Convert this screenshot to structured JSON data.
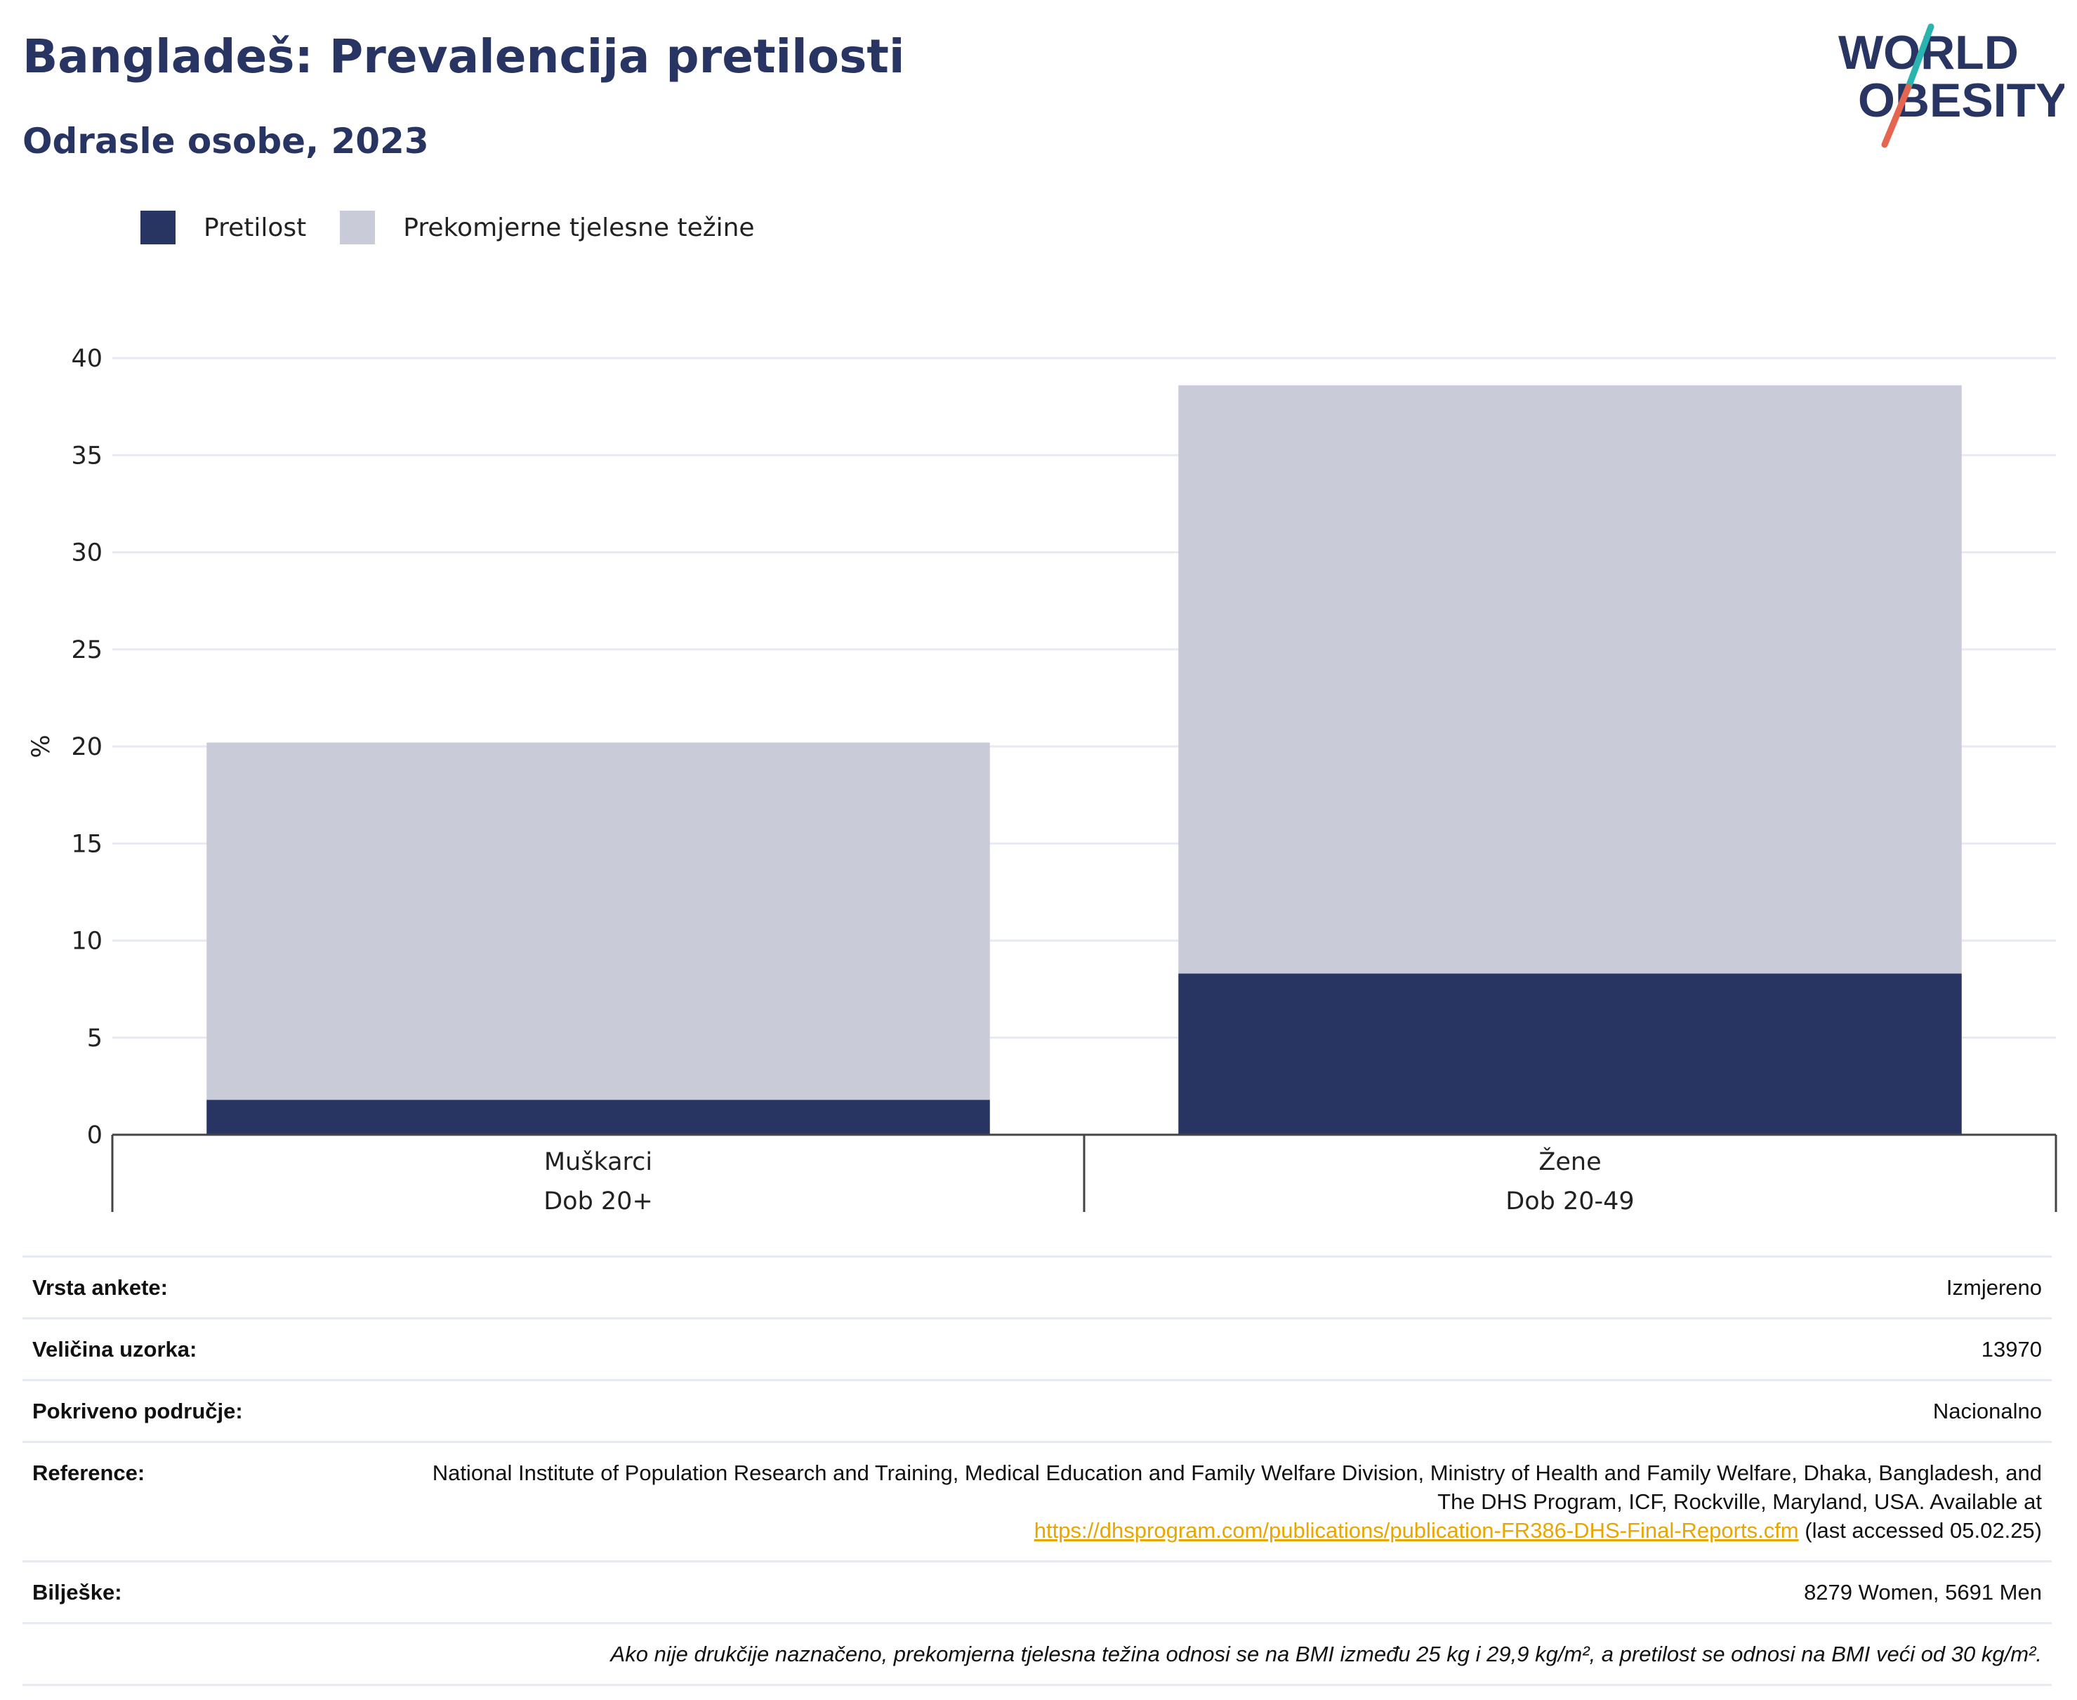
{
  "header": {
    "title": "Bangladeš: Prevalencija pretilosti",
    "subtitle": "Odrasle osobe, 2023"
  },
  "logo": {
    "line1": "WORLD",
    "line2": "OBESITY",
    "colors": {
      "text": "#283562",
      "slash_top": "#2bb3b0",
      "slash_bottom": "#e6654f"
    }
  },
  "colors": {
    "obesity": "#283562",
    "overweight": "#c9ccd8",
    "grid": "#e8eaf2",
    "axis": "#444444"
  },
  "legend": [
    {
      "label": "Pretilost",
      "color": "#283562"
    },
    {
      "label": "Prekomjerne tjelesne težine",
      "color": "#c9ccd8"
    }
  ],
  "chart_data": {
    "type": "bar",
    "stacked": true,
    "categories": [
      [
        "Muškarci",
        "Dob 20+"
      ],
      [
        "Žene",
        "Dob 20-49"
      ]
    ],
    "series": [
      {
        "name": "Pretilost",
        "values": [
          1.8,
          8.3
        ]
      },
      {
        "name": "Prekomjerne tjelesne težine",
        "values": [
          18.4,
          30.3
        ]
      }
    ],
    "ylabel": "%",
    "ylim": [
      0,
      40
    ],
    "yticks": [
      0,
      5,
      10,
      15,
      20,
      25,
      30,
      35,
      40
    ],
    "grid": true,
    "legend_position": "top-left"
  },
  "info": {
    "survey_type": {
      "label": "Vrsta ankete:",
      "value": "Izmjereno"
    },
    "sample_size": {
      "label": "Veličina uzorka:",
      "value": "13970"
    },
    "coverage": {
      "label": "Pokriveno područje:",
      "value": "Nacionalno"
    },
    "reference": {
      "label": "Reference:",
      "text": "National Institute of Population Research and Training, Medical Education and Family Welfare Division, Ministry of Health and Family Welfare, Dhaka, Bangladesh, and The DHS Program, ICF, Rockville, Maryland, USA. Available at",
      "link": "https://dhsprogram.com/publications/publication-FR386-DHS-Final-Reports.cfm",
      "suffix": "(last accessed 05.02.25)"
    },
    "notes": {
      "label": "Bilješke:",
      "value": "8279 Women, 5691 Men"
    },
    "footnote": "Ako nije drukčije naznačeno, prekomjerna tjelesna težina odnosi se na BMI između 25 kg i 29,9 kg/m², a pretilost se odnosi na BMI veći od 30 kg/m²."
  }
}
